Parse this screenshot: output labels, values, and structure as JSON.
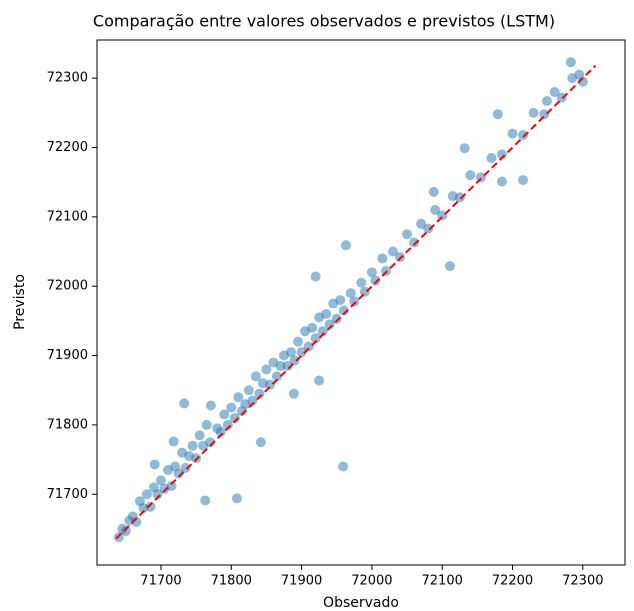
{
  "chart_data": {
    "type": "scatter",
    "title": "Comparação entre valores observados e previstos (LSTM)",
    "x_label": "Observado",
    "y_label": "Previsto",
    "xlim": [
      71609,
      72360
    ],
    "ylim": [
      71598,
      72355
    ],
    "xticks": [
      71700,
      71800,
      71900,
      72000,
      72100,
      72200,
      72300
    ],
    "yticks": [
      71700,
      71800,
      71900,
      72000,
      72100,
      72200,
      72300
    ],
    "series": [
      {
        "color": "#1f77b4",
        "alpha": 0.5,
        "x": [
          71640,
          71645,
          71650,
          71655,
          71660,
          71665,
          71670,
          71675,
          71680,
          71685,
          71690,
          71695,
          71700,
          71705,
          71710,
          71715,
          71720,
          71725,
          71730,
          71735,
          71740,
          71745,
          71750,
          71755,
          71760,
          71765,
          71770,
          71780,
          71785,
          71790,
          71795,
          71800,
          71805,
          71810,
          71815,
          71820,
          71825,
          71830,
          71835,
          71840,
          71845,
          71850,
          71855,
          71860,
          71865,
          71870,
          71875,
          71880,
          71885,
          71890,
          71895,
          71900,
          71905,
          71910,
          71915,
          71920,
          71925,
          71930,
          71935,
          71940,
          71945,
          71950,
          71955,
          71960,
          71970,
          71975,
          71985,
          71990,
          72000,
          72005,
          72015,
          72020,
          72030,
          72040,
          72050,
          72060,
          72070,
          72080,
          72090,
          72100,
          72115,
          72125,
          72140,
          72155,
          72170,
          72185,
          72200,
          72215,
          72230,
          72245,
          72260,
          72270,
          72285,
          72295,
          72300,
          72283,
          72132,
          72215,
          72185,
          72111,
          72088,
          71963,
          71920,
          71925,
          71889,
          71959,
          71842,
          71808,
          71763,
          71733,
          71771,
          71718,
          71691,
          72179,
          72249
        ],
        "y": [
          71638,
          71650,
          71647,
          71662,
          71668,
          71660,
          71690,
          71680,
          71700,
          71682,
          71710,
          71700,
          71720,
          71708,
          71735,
          71712,
          71740,
          71730,
          71760,
          71738,
          71755,
          71770,
          71752,
          71785,
          71770,
          71800,
          71775,
          71795,
          71790,
          71815,
          71800,
          71825,
          71810,
          71840,
          71820,
          71830,
          71850,
          71835,
          71870,
          71845,
          71860,
          71880,
          71858,
          71890,
          71870,
          71885,
          71900,
          71885,
          71905,
          71893,
          71920,
          71905,
          71935,
          71913,
          71940,
          71925,
          71955,
          71935,
          71960,
          71945,
          71975,
          71953,
          71980,
          71965,
          71990,
          71978,
          72005,
          71992,
          72020,
          72008,
          72040,
          72022,
          72050,
          72042,
          72075,
          72063,
          72090,
          72083,
          72110,
          72102,
          72130,
          72128,
          72160,
          72157,
          72185,
          72190,
          72220,
          72218,
          72250,
          72248,
          72280,
          72272,
          72300,
          72305,
          72295,
          72323,
          72199,
          72153,
          72151,
          72029,
          72136,
          72059,
          72014,
          71864,
          71845,
          71740,
          71775,
          71694,
          71691,
          71831,
          71828,
          71776,
          71743,
          72248,
          72267
        ]
      }
    ],
    "line": {
      "x": [
        71636,
        72318
      ],
      "y": [
        71636,
        72318
      ],
      "color": "#ff0000",
      "dashed": true
    }
  }
}
